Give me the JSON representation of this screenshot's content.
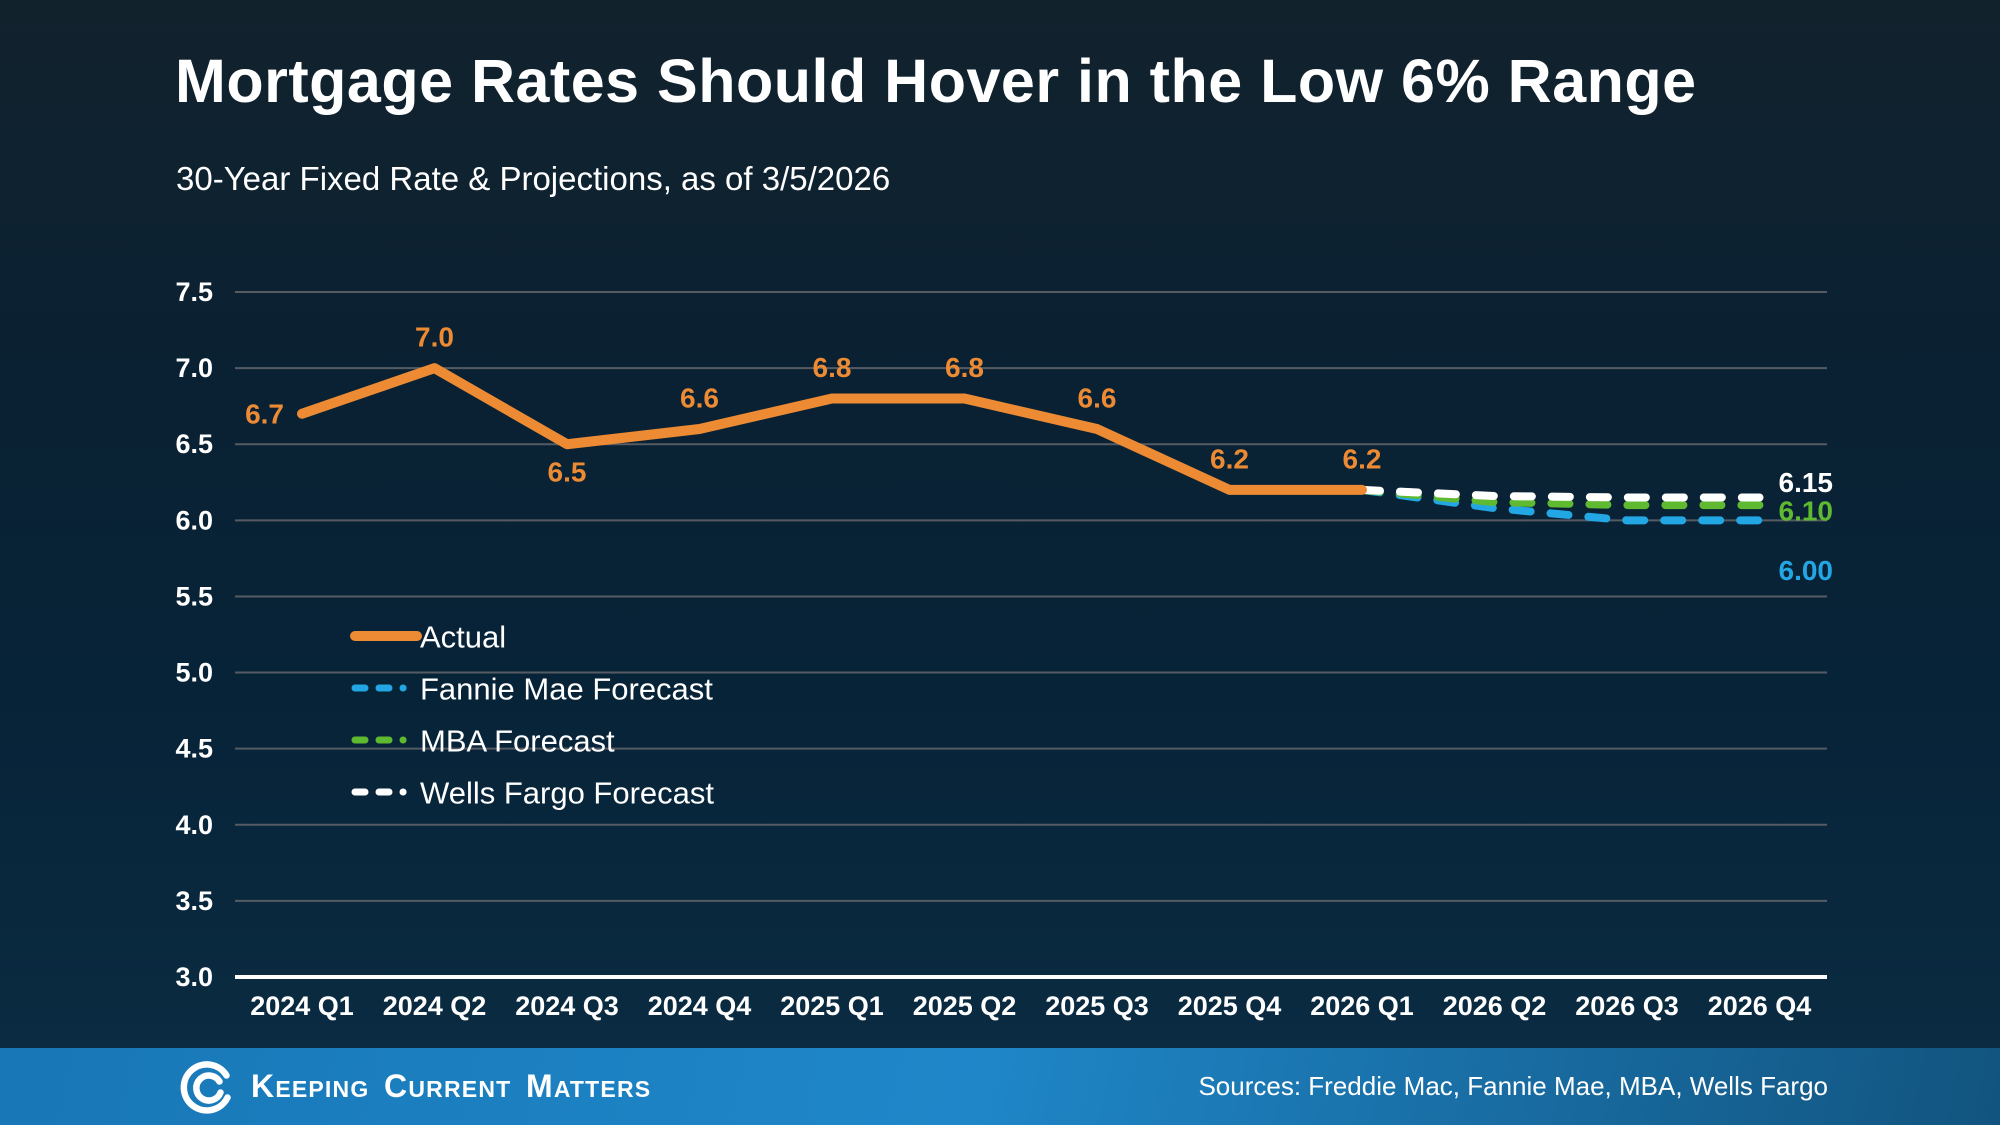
{
  "header": {
    "title": "Mortgage Rates Should Hover in the Low 6% Range",
    "subtitle": "30-Year Fixed Rate & Projections, as of 3/5/2026"
  },
  "chart_data": {
    "type": "line",
    "title": "Mortgage Rates Should Hover in the Low 6% Range",
    "subtitle": "30-Year Fixed Rate & Projections, as of 3/5/2026",
    "x_categories": [
      "2024 Q1",
      "2024 Q2",
      "2024 Q3",
      "2024 Q4",
      "2025 Q1",
      "2025 Q2",
      "2025 Q3",
      "2025 Q4",
      "2026 Q1",
      "2026 Q2",
      "2026 Q3",
      "2026 Q4"
    ],
    "ylim": [
      3.0,
      7.5
    ],
    "yticks": [
      7.5,
      7.0,
      6.5,
      6.0,
      5.5,
      5.0,
      4.5,
      4.0,
      3.5,
      3.0
    ],
    "grid": true,
    "legend_position": "inside-left",
    "colors": {
      "background": "#0a2335",
      "gridline": "#565b63",
      "axis": "#ffffff"
    },
    "series": [
      {
        "name": "Actual",
        "color": "#EC8B33",
        "dash": "solid",
        "start_index": 0,
        "values": [
          6.7,
          7.0,
          6.5,
          6.6,
          6.8,
          6.8,
          6.6,
          6.2,
          6.2
        ],
        "point_labels": [
          "6.7",
          "7.0",
          "6.5",
          "6.6",
          "6.8",
          "6.8",
          "6.6",
          "6.2",
          "6.2"
        ],
        "label_pos": [
          "left",
          "above",
          "below",
          "above",
          "above",
          "above",
          "above",
          "above",
          "above"
        ]
      },
      {
        "name": "Fannie Mae Forecast",
        "color": "#22A7E4",
        "dash": "dashed",
        "start_index": 8,
        "values": [
          6.2,
          6.08,
          6.0,
          6.0
        ],
        "end_label": "6.00",
        "end_label_dy": 50
      },
      {
        "name": "MBA Forecast",
        "color": "#5FBA31",
        "dash": "dashed",
        "start_index": 8,
        "values": [
          6.2,
          6.12,
          6.1,
          6.1
        ],
        "end_label": "6.10",
        "end_label_dy": 6
      },
      {
        "name": "Wells Fargo Forecast",
        "color": "#FFFFFF",
        "dash": "dashed",
        "start_index": 8,
        "values": [
          6.2,
          6.16,
          6.15,
          6.15
        ],
        "end_label": "6.15",
        "end_label_dy": -15
      }
    ],
    "legend_order": [
      "Actual",
      "Fannie Mae Forecast",
      "MBA Forecast",
      "Wells Fargo Forecast"
    ]
  },
  "footer": {
    "brand": "Keeping Current Matters",
    "sources": "Sources: Freddie Mac, Fannie Mae, MBA, Wells Fargo"
  }
}
